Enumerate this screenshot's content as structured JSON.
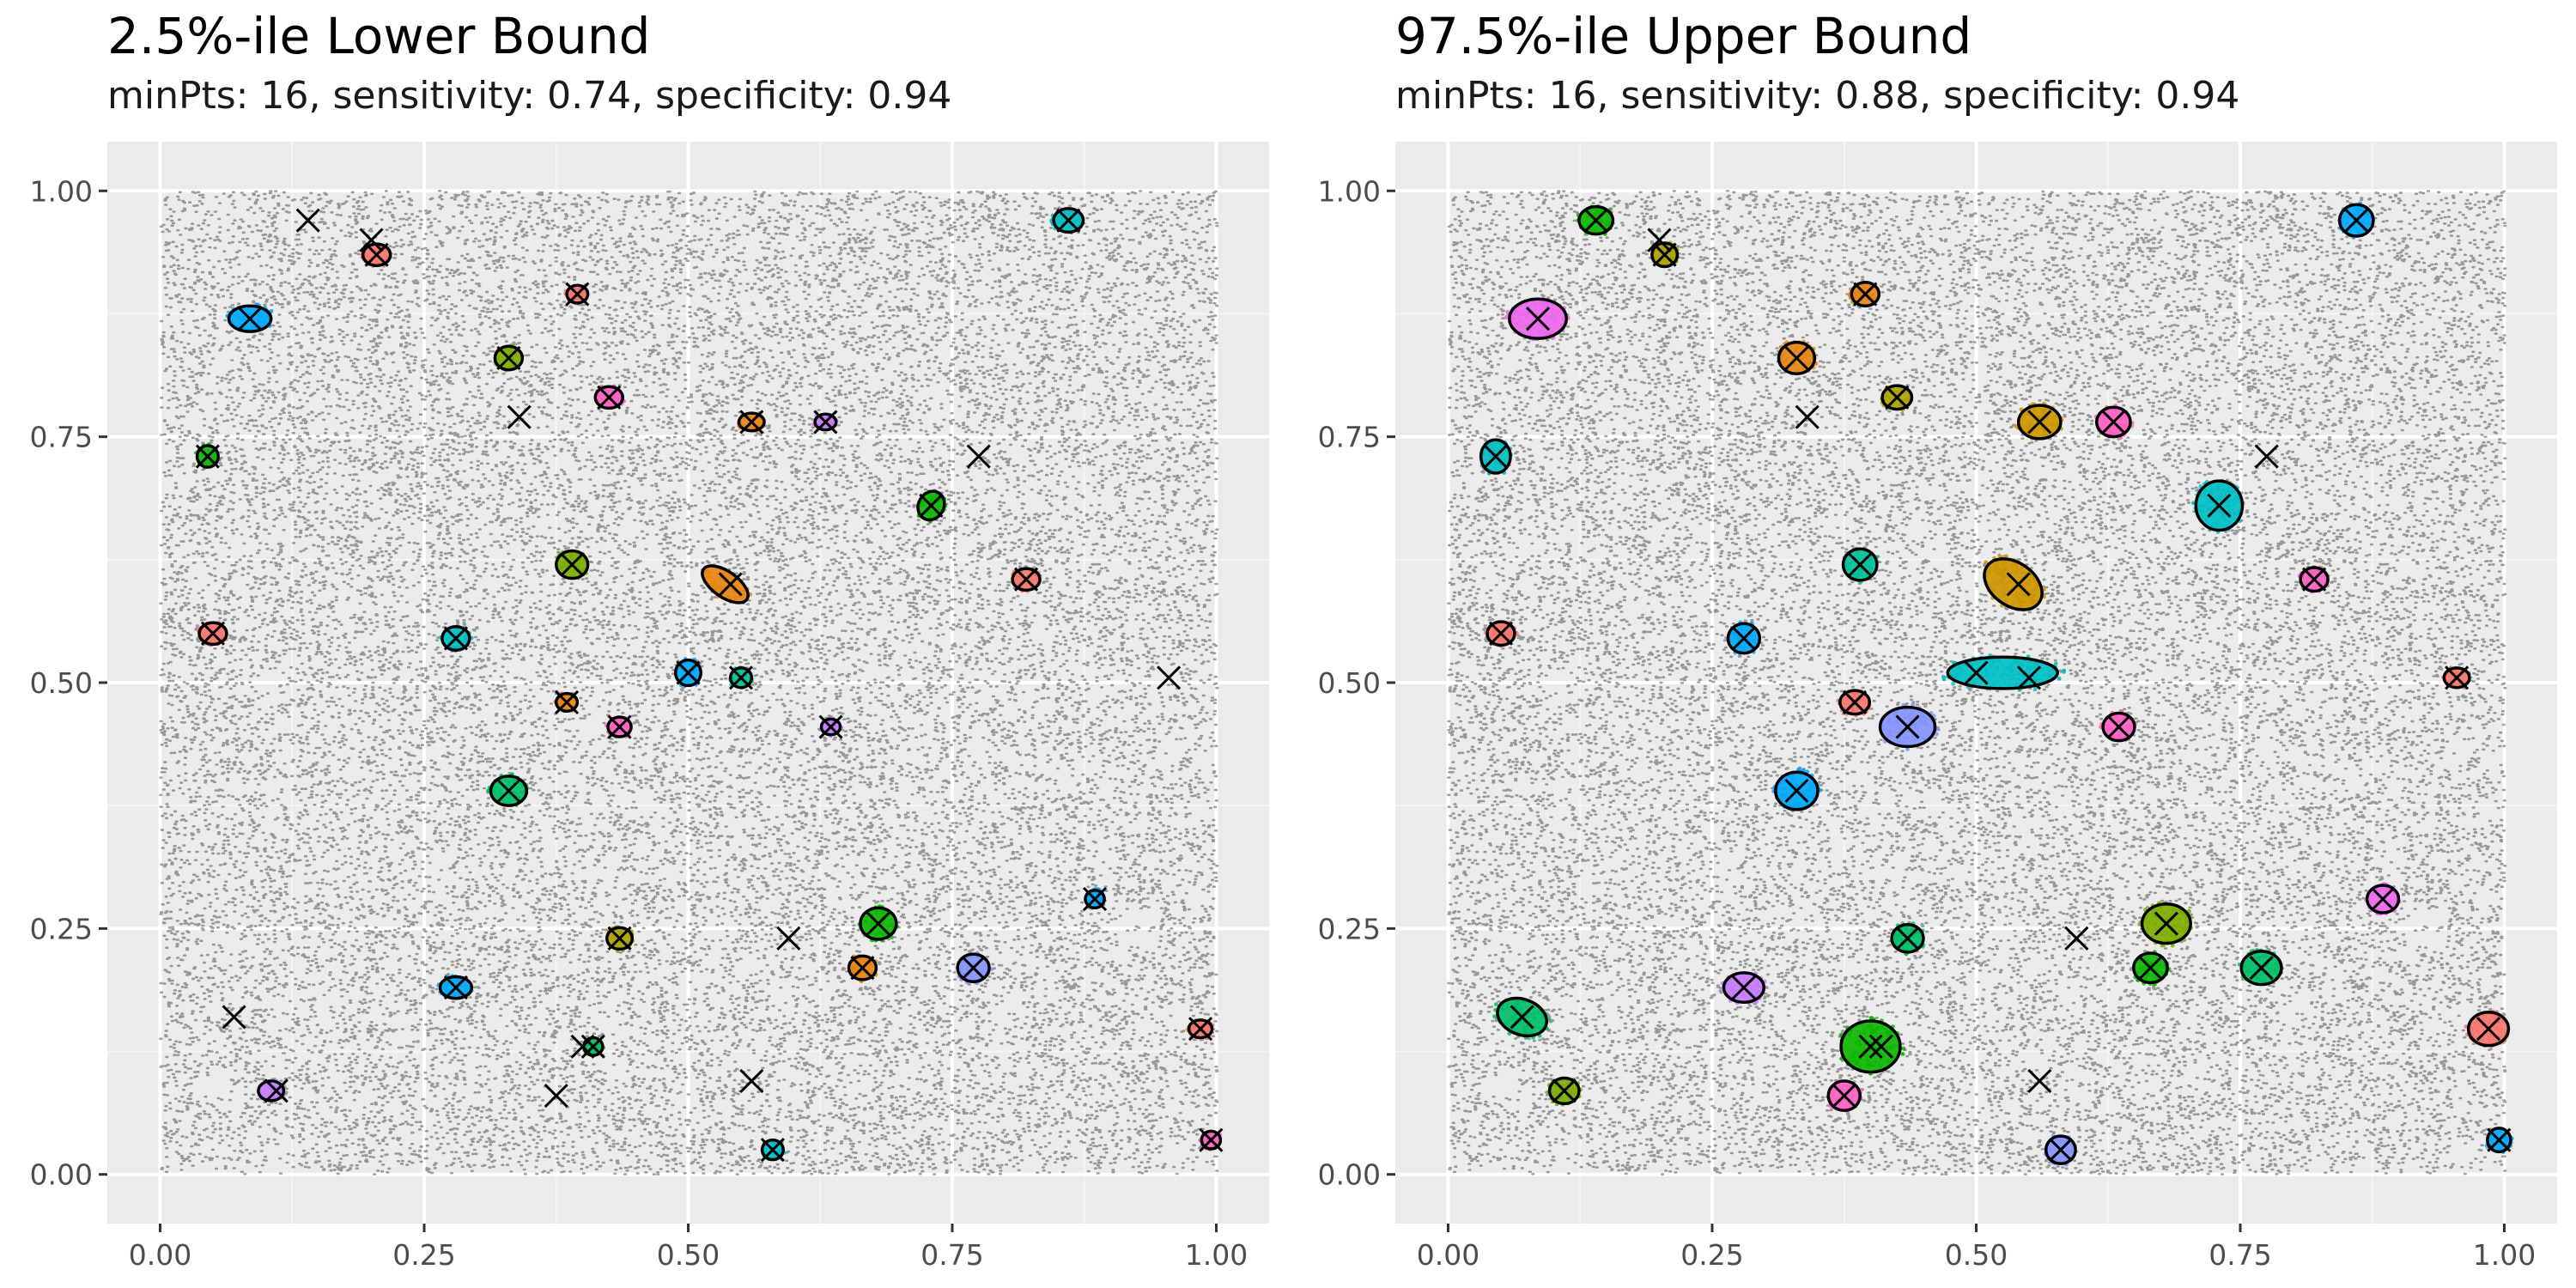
{
  "chart_data": [
    {
      "type": "scatter",
      "title": "2.5%-ile Lower Bound",
      "subtitle": "minPts: 16, sensitivity: 0.74, specificity: 0.94",
      "xlabel": "",
      "ylabel": "",
      "xlim": [
        -0.05,
        1.05
      ],
      "ylim": [
        -0.05,
        1.05
      ],
      "x_ticks": [
        "0.00",
        "0.25",
        "0.50",
        "0.75",
        "1.00"
      ],
      "y_ticks": [
        "0.00",
        "0.25",
        "0.50",
        "0.75",
        "1.00"
      ],
      "grid": true,
      "background_points": {
        "x_range": [
          0,
          1
        ],
        "y_range": [
          0,
          1
        ],
        "color": "#333333"
      },
      "true_centers": [
        [
          0.14,
          0.97
        ],
        [
          0.2,
          0.95
        ],
        [
          0.205,
          0.935
        ],
        [
          0.085,
          0.87
        ],
        [
          0.395,
          0.895
        ],
        [
          0.86,
          0.97
        ],
        [
          0.33,
          0.83
        ],
        [
          0.425,
          0.79
        ],
        [
          0.34,
          0.77
        ],
        [
          0.56,
          0.765
        ],
        [
          0.63,
          0.765
        ],
        [
          0.045,
          0.73
        ],
        [
          0.775,
          0.73
        ],
        [
          0.73,
          0.68
        ],
        [
          0.39,
          0.62
        ],
        [
          0.54,
          0.6
        ],
        [
          0.82,
          0.605
        ],
        [
          0.05,
          0.55
        ],
        [
          0.28,
          0.545
        ],
        [
          0.955,
          0.505
        ],
        [
          0.5,
          0.51
        ],
        [
          0.55,
          0.505
        ],
        [
          0.385,
          0.48
        ],
        [
          0.435,
          0.455
        ],
        [
          0.635,
          0.455
        ],
        [
          0.33,
          0.39
        ],
        [
          0.885,
          0.28
        ],
        [
          0.68,
          0.255
        ],
        [
          0.435,
          0.24
        ],
        [
          0.595,
          0.24
        ],
        [
          0.665,
          0.21
        ],
        [
          0.77,
          0.21
        ],
        [
          0.28,
          0.19
        ],
        [
          0.07,
          0.16
        ],
        [
          0.985,
          0.148
        ],
        [
          0.4,
          0.13
        ],
        [
          0.41,
          0.13
        ],
        [
          0.11,
          0.085
        ],
        [
          0.375,
          0.08
        ],
        [
          0.56,
          0.095
        ],
        [
          0.58,
          0.025
        ],
        [
          0.995,
          0.035
        ]
      ],
      "clusters": [
        {
          "x": 0.205,
          "y": 0.935,
          "rx": 0.013,
          "ry": 0.011,
          "angle": 0,
          "color": "#F8766D"
        },
        {
          "x": 0.085,
          "y": 0.87,
          "rx": 0.02,
          "ry": 0.013,
          "angle": 0,
          "color": "#00A9FF"
        },
        {
          "x": 0.395,
          "y": 0.895,
          "rx": 0.01,
          "ry": 0.009,
          "angle": 0,
          "color": "#F8766D"
        },
        {
          "x": 0.86,
          "y": 0.97,
          "rx": 0.014,
          "ry": 0.012,
          "angle": 0,
          "color": "#00BFC4"
        },
        {
          "x": 0.33,
          "y": 0.83,
          "rx": 0.013,
          "ry": 0.012,
          "angle": 0,
          "color": "#7CAE00"
        },
        {
          "x": 0.425,
          "y": 0.79,
          "rx": 0.013,
          "ry": 0.011,
          "angle": 0,
          "color": "#FF61C3"
        },
        {
          "x": 0.56,
          "y": 0.765,
          "rx": 0.012,
          "ry": 0.009,
          "angle": 0,
          "color": "#E68613"
        },
        {
          "x": 0.63,
          "y": 0.765,
          "rx": 0.01,
          "ry": 0.008,
          "angle": 0,
          "color": "#C77CFF"
        },
        {
          "x": 0.045,
          "y": 0.73,
          "rx": 0.01,
          "ry": 0.011,
          "angle": 0,
          "color": "#0CB702"
        },
        {
          "x": 0.73,
          "y": 0.68,
          "rx": 0.012,
          "ry": 0.015,
          "angle": -30,
          "color": "#0CB702"
        },
        {
          "x": 0.39,
          "y": 0.62,
          "rx": 0.015,
          "ry": 0.014,
          "angle": 0,
          "color": "#7CAE00"
        },
        {
          "x": 0.535,
          "y": 0.6,
          "rx": 0.025,
          "ry": 0.013,
          "angle": -35,
          "color": "#E68613"
        },
        {
          "x": 0.82,
          "y": 0.605,
          "rx": 0.013,
          "ry": 0.011,
          "angle": 0,
          "color": "#F8766D"
        },
        {
          "x": 0.05,
          "y": 0.55,
          "rx": 0.013,
          "ry": 0.011,
          "angle": 0,
          "color": "#F8766D"
        },
        {
          "x": 0.28,
          "y": 0.545,
          "rx": 0.013,
          "ry": 0.012,
          "angle": 0,
          "color": "#00BFC4"
        },
        {
          "x": 0.5,
          "y": 0.51,
          "rx": 0.012,
          "ry": 0.013,
          "angle": 0,
          "color": "#00A9FF"
        },
        {
          "x": 0.55,
          "y": 0.505,
          "rx": 0.01,
          "ry": 0.01,
          "angle": 0,
          "color": "#00C19A"
        },
        {
          "x": 0.385,
          "y": 0.48,
          "rx": 0.01,
          "ry": 0.009,
          "angle": 0,
          "color": "#E68613"
        },
        {
          "x": 0.435,
          "y": 0.455,
          "rx": 0.011,
          "ry": 0.01,
          "angle": 0,
          "color": "#FF61C3"
        },
        {
          "x": 0.635,
          "y": 0.455,
          "rx": 0.009,
          "ry": 0.008,
          "angle": 0,
          "color": "#C77CFF"
        },
        {
          "x": 0.33,
          "y": 0.39,
          "rx": 0.017,
          "ry": 0.015,
          "angle": 0,
          "color": "#00BE67"
        },
        {
          "x": 0.885,
          "y": 0.28,
          "rx": 0.009,
          "ry": 0.009,
          "angle": 0,
          "color": "#00A9FF"
        },
        {
          "x": 0.68,
          "y": 0.255,
          "rx": 0.017,
          "ry": 0.016,
          "angle": 0,
          "color": "#0CB702"
        },
        {
          "x": 0.435,
          "y": 0.24,
          "rx": 0.012,
          "ry": 0.011,
          "angle": 0,
          "color": "#ABA300"
        },
        {
          "x": 0.665,
          "y": 0.21,
          "rx": 0.013,
          "ry": 0.012,
          "angle": 0,
          "color": "#E68613"
        },
        {
          "x": 0.77,
          "y": 0.21,
          "rx": 0.015,
          "ry": 0.014,
          "angle": 0,
          "color": "#8494FF"
        },
        {
          "x": 0.28,
          "y": 0.19,
          "rx": 0.015,
          "ry": 0.011,
          "angle": 0,
          "color": "#00A9FF"
        },
        {
          "x": 0.985,
          "y": 0.148,
          "rx": 0.011,
          "ry": 0.009,
          "angle": 0,
          "color": "#F8766D"
        },
        {
          "x": 0.41,
          "y": 0.13,
          "rx": 0.009,
          "ry": 0.009,
          "angle": 0,
          "color": "#00BE67"
        },
        {
          "x": 0.105,
          "y": 0.085,
          "rx": 0.012,
          "ry": 0.01,
          "angle": 0,
          "color": "#C77CFF"
        },
        {
          "x": 0.58,
          "y": 0.025,
          "rx": 0.01,
          "ry": 0.01,
          "angle": 0,
          "color": "#00BFC4"
        },
        {
          "x": 0.995,
          "y": 0.035,
          "rx": 0.009,
          "ry": 0.009,
          "angle": 0,
          "color": "#FF61C3"
        }
      ]
    },
    {
      "type": "scatter",
      "title": "97.5%-ile Upper Bound",
      "subtitle": "minPts: 16, sensitivity: 0.88, specificity: 0.94",
      "xlabel": "",
      "ylabel": "",
      "xlim": [
        -0.05,
        1.05
      ],
      "ylim": [
        -0.05,
        1.05
      ],
      "x_ticks": [
        "0.00",
        "0.25",
        "0.50",
        "0.75",
        "1.00"
      ],
      "y_ticks": [
        "0.00",
        "0.25",
        "0.50",
        "0.75",
        "1.00"
      ],
      "grid": true,
      "background_points": {
        "x_range": [
          0,
          1
        ],
        "y_range": [
          0,
          1
        ],
        "color": "#333333"
      },
      "true_centers": [
        [
          0.14,
          0.97
        ],
        [
          0.2,
          0.95
        ],
        [
          0.205,
          0.935
        ],
        [
          0.085,
          0.87
        ],
        [
          0.395,
          0.895
        ],
        [
          0.86,
          0.97
        ],
        [
          0.33,
          0.83
        ],
        [
          0.425,
          0.79
        ],
        [
          0.34,
          0.77
        ],
        [
          0.56,
          0.765
        ],
        [
          0.63,
          0.765
        ],
        [
          0.045,
          0.73
        ],
        [
          0.775,
          0.73
        ],
        [
          0.73,
          0.68
        ],
        [
          0.39,
          0.62
        ],
        [
          0.54,
          0.6
        ],
        [
          0.82,
          0.605
        ],
        [
          0.05,
          0.55
        ],
        [
          0.28,
          0.545
        ],
        [
          0.955,
          0.505
        ],
        [
          0.5,
          0.51
        ],
        [
          0.55,
          0.505
        ],
        [
          0.385,
          0.48
        ],
        [
          0.435,
          0.455
        ],
        [
          0.635,
          0.455
        ],
        [
          0.33,
          0.39
        ],
        [
          0.885,
          0.28
        ],
        [
          0.68,
          0.255
        ],
        [
          0.435,
          0.24
        ],
        [
          0.595,
          0.24
        ],
        [
          0.665,
          0.21
        ],
        [
          0.77,
          0.21
        ],
        [
          0.28,
          0.19
        ],
        [
          0.07,
          0.16
        ],
        [
          0.985,
          0.148
        ],
        [
          0.4,
          0.13
        ],
        [
          0.41,
          0.13
        ],
        [
          0.11,
          0.085
        ],
        [
          0.375,
          0.08
        ],
        [
          0.56,
          0.095
        ],
        [
          0.58,
          0.025
        ],
        [
          0.995,
          0.035
        ]
      ],
      "clusters": [
        {
          "x": 0.14,
          "y": 0.97,
          "rx": 0.016,
          "ry": 0.014,
          "angle": 0,
          "color": "#0CB702"
        },
        {
          "x": 0.205,
          "y": 0.935,
          "rx": 0.012,
          "ry": 0.012,
          "angle": 0,
          "color": "#ABA300"
        },
        {
          "x": 0.085,
          "y": 0.87,
          "rx": 0.027,
          "ry": 0.02,
          "angle": 0,
          "color": "#ED68ED"
        },
        {
          "x": 0.395,
          "y": 0.895,
          "rx": 0.013,
          "ry": 0.012,
          "angle": 0,
          "color": "#E68613"
        },
        {
          "x": 0.86,
          "y": 0.97,
          "rx": 0.016,
          "ry": 0.016,
          "angle": 0,
          "color": "#00A9FF"
        },
        {
          "x": 0.33,
          "y": 0.83,
          "rx": 0.017,
          "ry": 0.016,
          "angle": 0,
          "color": "#E68613"
        },
        {
          "x": 0.425,
          "y": 0.79,
          "rx": 0.014,
          "ry": 0.012,
          "angle": 0,
          "color": "#ABA300"
        },
        {
          "x": 0.56,
          "y": 0.765,
          "rx": 0.02,
          "ry": 0.017,
          "angle": 0,
          "color": "#CD9600"
        },
        {
          "x": 0.63,
          "y": 0.765,
          "rx": 0.016,
          "ry": 0.015,
          "angle": 0,
          "color": "#FF61C3"
        },
        {
          "x": 0.045,
          "y": 0.73,
          "rx": 0.014,
          "ry": 0.017,
          "angle": 0,
          "color": "#00BFC4"
        },
        {
          "x": 0.73,
          "y": 0.68,
          "rx": 0.022,
          "ry": 0.025,
          "angle": 0,
          "color": "#00BFC4"
        },
        {
          "x": 0.39,
          "y": 0.62,
          "rx": 0.016,
          "ry": 0.016,
          "angle": 0,
          "color": "#00C19A"
        },
        {
          "x": 0.535,
          "y": 0.6,
          "rx": 0.03,
          "ry": 0.022,
          "angle": -35,
          "color": "#CD9600"
        },
        {
          "x": 0.82,
          "y": 0.605,
          "rx": 0.013,
          "ry": 0.012,
          "angle": 0,
          "color": "#FF61C3"
        },
        {
          "x": 0.05,
          "y": 0.55,
          "rx": 0.013,
          "ry": 0.012,
          "angle": 0,
          "color": "#F8766D"
        },
        {
          "x": 0.28,
          "y": 0.545,
          "rx": 0.015,
          "ry": 0.015,
          "angle": 0,
          "color": "#00A9FF"
        },
        {
          "x": 0.525,
          "y": 0.51,
          "rx": 0.052,
          "ry": 0.016,
          "angle": 0,
          "color": "#00BFC4"
        },
        {
          "x": 0.955,
          "y": 0.505,
          "rx": 0.012,
          "ry": 0.01,
          "angle": 0,
          "color": "#F8766D"
        },
        {
          "x": 0.385,
          "y": 0.48,
          "rx": 0.014,
          "ry": 0.012,
          "angle": 0,
          "color": "#F8766D"
        },
        {
          "x": 0.435,
          "y": 0.455,
          "rx": 0.026,
          "ry": 0.02,
          "angle": 0,
          "color": "#8494FF"
        },
        {
          "x": 0.635,
          "y": 0.455,
          "rx": 0.015,
          "ry": 0.014,
          "angle": 0,
          "color": "#FF61C3"
        },
        {
          "x": 0.33,
          "y": 0.39,
          "rx": 0.02,
          "ry": 0.019,
          "angle": 0,
          "color": "#00A9FF"
        },
        {
          "x": 0.885,
          "y": 0.28,
          "rx": 0.015,
          "ry": 0.014,
          "angle": 0,
          "color": "#ED68ED"
        },
        {
          "x": 0.68,
          "y": 0.255,
          "rx": 0.023,
          "ry": 0.02,
          "angle": 0,
          "color": "#7CAE00"
        },
        {
          "x": 0.435,
          "y": 0.24,
          "rx": 0.015,
          "ry": 0.014,
          "angle": 0,
          "color": "#00BE67"
        },
        {
          "x": 0.665,
          "y": 0.21,
          "rx": 0.016,
          "ry": 0.015,
          "angle": 0,
          "color": "#0CB702"
        },
        {
          "x": 0.77,
          "y": 0.21,
          "rx": 0.019,
          "ry": 0.017,
          "angle": 0,
          "color": "#00BE67"
        },
        {
          "x": 0.28,
          "y": 0.19,
          "rx": 0.019,
          "ry": 0.015,
          "angle": 0,
          "color": "#C77CFF"
        },
        {
          "x": 0.07,
          "y": 0.16,
          "rx": 0.024,
          "ry": 0.018,
          "angle": -20,
          "color": "#00BE67"
        },
        {
          "x": 0.985,
          "y": 0.148,
          "rx": 0.019,
          "ry": 0.017,
          "angle": 0,
          "color": "#F8766D"
        },
        {
          "x": 0.4,
          "y": 0.13,
          "rx": 0.028,
          "ry": 0.026,
          "angle": 0,
          "color": "#0CB702"
        },
        {
          "x": 0.11,
          "y": 0.085,
          "rx": 0.014,
          "ry": 0.013,
          "angle": 0,
          "color": "#7CAE00"
        },
        {
          "x": 0.375,
          "y": 0.08,
          "rx": 0.015,
          "ry": 0.015,
          "angle": 0,
          "color": "#FF61C3"
        },
        {
          "x": 0.58,
          "y": 0.025,
          "rx": 0.014,
          "ry": 0.014,
          "angle": 0,
          "color": "#8494FF"
        },
        {
          "x": 0.995,
          "y": 0.035,
          "rx": 0.011,
          "ry": 0.012,
          "angle": 0,
          "color": "#00A9FF"
        }
      ]
    }
  ],
  "colors": {
    "panel_background": "#EBEBEB",
    "grid_major": "#FFFFFF",
    "grid_minor": "#F4F4F4",
    "tick_text": "#4D4D4D",
    "noise_points": "#333333"
  }
}
